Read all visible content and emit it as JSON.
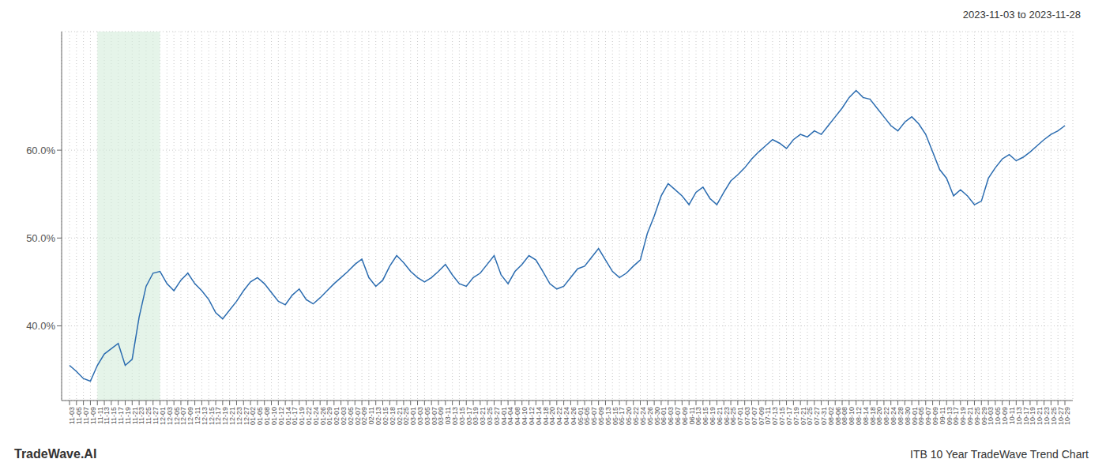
{
  "chart_data": {
    "type": "line",
    "title": "ITB 10 Year TradeWave Trend Chart",
    "subtitle": "2023-11-03 to 2023-11-28",
    "annotations": [
      "TradeWave.AI"
    ],
    "color": "#2b6cb0",
    "grid": true,
    "highlight_start": "11-11",
    "highlight_end": "12-01",
    "highlight_color": "#d4edda",
    "ylim": [
      0.315,
      0.735
    ],
    "yticks": [
      {
        "value": 0.4,
        "label": "40.0%"
      },
      {
        "value": 0.5,
        "label": "50.0%"
      },
      {
        "value": 0.6,
        "label": "60.0%"
      }
    ],
    "categories": [
      "11-03",
      "11-05",
      "11-07",
      "11-09",
      "11-11",
      "11-13",
      "11-15",
      "11-17",
      "11-19",
      "11-21",
      "11-23",
      "11-25",
      "11-27",
      "12-01",
      "12-03",
      "12-05",
      "12-07",
      "12-09",
      "12-11",
      "12-13",
      "12-15",
      "12-17",
      "12-19",
      "12-21",
      "12-23",
      "12-27",
      "01-02",
      "01-05",
      "01-08",
      "01-10",
      "01-12",
      "01-14",
      "01-17",
      "01-19",
      "01-22",
      "01-24",
      "01-26",
      "01-29",
      "02-01",
      "02-03",
      "02-05",
      "02-07",
      "02-09",
      "02-11",
      "02-13",
      "02-15",
      "02-18",
      "02-21",
      "02-25",
      "03-01",
      "03-03",
      "03-05",
      "03-07",
      "03-09",
      "03-11",
      "03-13",
      "03-15",
      "03-17",
      "03-19",
      "03-21",
      "03-25",
      "03-27",
      "04-01",
      "04-04",
      "04-08",
      "04-10",
      "04-12",
      "04-14",
      "04-18",
      "04-20",
      "04-22",
      "04-24",
      "04-26",
      "05-01",
      "05-05",
      "05-07",
      "05-09",
      "05-13",
      "05-15",
      "05-17",
      "05-20",
      "05-22",
      "05-24",
      "05-26",
      "05-30",
      "06-01",
      "06-03",
      "06-07",
      "06-09",
      "06-11",
      "06-13",
      "06-15",
      "06-19",
      "06-21",
      "06-23",
      "06-25",
      "07-01",
      "07-03",
      "07-07",
      "07-09",
      "07-11",
      "07-13",
      "07-15",
      "07-17",
      "07-19",
      "07-21",
      "07-25",
      "07-27",
      "07-31",
      "08-02",
      "08-06",
      "08-08",
      "08-10",
      "08-12",
      "08-14",
      "08-18",
      "08-20",
      "08-22",
      "08-24",
      "08-28",
      "08-30",
      "09-01",
      "09-05",
      "09-07",
      "09-09",
      "09-11",
      "09-13",
      "09-17",
      "09-19",
      "09-21",
      "09-25",
      "09-29",
      "10-03",
      "10-05",
      "10-09",
      "10-11",
      "10-13",
      "10-17",
      "10-19",
      "10-21",
      "10-23",
      "10-25",
      "10-27",
      "10-29"
    ],
    "values": [
      0.355,
      0.348,
      0.34,
      0.337,
      0.355,
      0.368,
      0.374,
      0.38,
      0.355,
      0.362,
      0.41,
      0.445,
      0.46,
      0.462,
      0.448,
      0.44,
      0.452,
      0.46,
      0.448,
      0.44,
      0.43,
      0.415,
      0.408,
      0.418,
      0.428,
      0.44,
      0.45,
      0.455,
      0.448,
      0.438,
      0.428,
      0.424,
      0.435,
      0.442,
      0.43,
      0.425,
      0.432,
      0.44,
      0.448,
      0.455,
      0.462,
      0.47,
      0.476,
      0.455,
      0.445,
      0.452,
      0.468,
      0.48,
      0.472,
      0.462,
      0.455,
      0.45,
      0.455,
      0.462,
      0.47,
      0.458,
      0.448,
      0.445,
      0.455,
      0.46,
      0.47,
      0.48,
      0.458,
      0.448,
      0.462,
      0.47,
      0.48,
      0.475,
      0.462,
      0.448,
      0.442,
      0.445,
      0.455,
      0.465,
      0.468,
      0.478,
      0.488,
      0.475,
      0.462,
      0.455,
      0.46,
      0.468,
      0.475,
      0.505,
      0.525,
      0.548,
      0.562,
      0.555,
      0.548,
      0.538,
      0.552,
      0.558,
      0.545,
      0.538,
      0.552,
      0.565,
      0.572,
      0.58,
      0.59,
      0.598,
      0.605,
      0.612,
      0.608,
      0.602,
      0.612,
      0.618,
      0.615,
      0.622,
      0.618,
      0.628,
      0.638,
      0.648,
      0.66,
      0.668,
      0.66,
      0.658,
      0.648,
      0.638,
      0.628,
      0.622,
      0.632,
      0.638,
      0.63,
      0.618,
      0.598,
      0.578,
      0.568,
      0.548,
      0.555,
      0.548,
      0.538,
      0.542,
      0.568,
      0.58,
      0.59,
      0.595,
      0.588,
      0.592,
      0.598,
      0.605,
      0.612,
      0.618,
      0.622,
      0.628
    ]
  }
}
